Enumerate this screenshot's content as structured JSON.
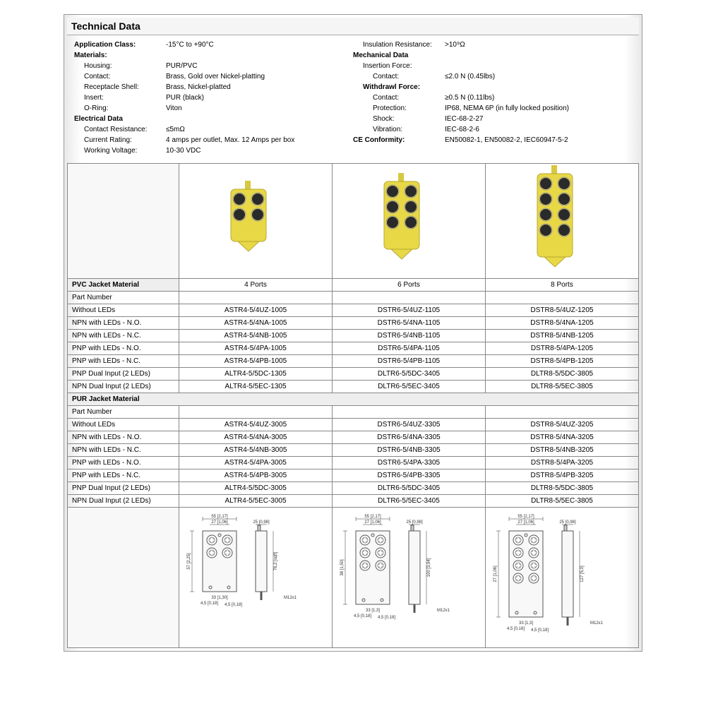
{
  "title": "Technical Data",
  "specs_left": [
    {
      "label": "Application Class:",
      "value": "-15°C to +90°C",
      "bold": true
    },
    {
      "label": "Materials:",
      "value": "",
      "bold": true
    },
    {
      "label": "Housing:",
      "value": "PUR/PVC",
      "indent": 1
    },
    {
      "label": "Contact:",
      "value": "Brass, Gold over Nickel-platting",
      "indent": 1
    },
    {
      "label": "Receptacle Shell:",
      "value": "Brass, Nickel-platted",
      "indent": 1
    },
    {
      "label": "Insert:",
      "value": "PUR (black)",
      "indent": 1
    },
    {
      "label": "O-Ring:",
      "value": "Viton",
      "indent": 1
    },
    {
      "label": "Electrical Data",
      "value": "",
      "bold": true
    },
    {
      "label": "Contact Resistance:",
      "value": "≤5mΩ",
      "indent": 1
    },
    {
      "label": "Current Rating:",
      "value": "4 amps per outlet, Max. 12 Amps per box",
      "indent": 1
    },
    {
      "label": "Working Voltage:",
      "value": "10-30 VDC",
      "indent": 1
    }
  ],
  "specs_right": [
    {
      "label": "Insulation Resistance:",
      "value": ">10⁹Ω",
      "indent": 1
    },
    {
      "label": "Mechanical Data",
      "value": "",
      "bold": true
    },
    {
      "label": "Insertion Force:",
      "value": "",
      "indent": 1
    },
    {
      "label": "Contact:",
      "value": "≤2.0 N (0.45lbs)",
      "indent": 2
    },
    {
      "label": "Withdrawl Force:",
      "value": "",
      "bold": true,
      "indent": 1
    },
    {
      "label": "Contact:",
      "value": "≥0.5 N (0.11lbs)",
      "indent": 2
    },
    {
      "label": "Protection:",
      "value": "IP68, NEMA 6P (in fully locked position)",
      "indent": 2
    },
    {
      "label": "Shock:",
      "value": "IEC-68-2-27",
      "indent": 2
    },
    {
      "label": "Vibration:",
      "value": "IEC-68-2-6",
      "indent": 2
    },
    {
      "label": "CE Conformity:",
      "value": "EN50082-1, EN50082-2, IEC60947-5-2",
      "bold": true
    }
  ],
  "columns": [
    "4 Ports",
    "6 Ports",
    "8 Ports"
  ],
  "section1_header": "PVC Jacket Material",
  "section1_sub": "Part Number",
  "section1_rows": [
    {
      "label": "Without LEDs",
      "vals": [
        "ASTR4-5/4UZ-1005",
        "DSTR6-5/4UZ-1105",
        "DSTR8-5/4UZ-1205"
      ]
    },
    {
      "label": "NPN with LEDs - N.O.",
      "vals": [
        "ASTR4-5/4NA-1005",
        "DSTR6-5/4NA-1105",
        "DSTR8-5/4NA-1205"
      ]
    },
    {
      "label": "NPN with LEDs - N.C.",
      "vals": [
        "ASTR4-5/4NB-1005",
        "DSTR6-5/4NB-1105",
        "DSTR8-5/4NB-1205"
      ]
    },
    {
      "label": "PNP with LEDs - N.O.",
      "vals": [
        "ASTR4-5/4PA-1005",
        "DSTR6-5/4PA-1105",
        "DSTR8-5/4PA-1205"
      ]
    },
    {
      "label": "PNP with LEDs - N.C.",
      "vals": [
        "ASTR4-5/4PB-1005",
        "DSTR6-5/4PB-1105",
        "DSTR8-5/4PB-1205"
      ]
    },
    {
      "label": "PNP Dual Input (2 LEDs)",
      "vals": [
        "ALTR4-5/5DC-1305",
        "DLTR6-5/5DC-3405",
        "DLTR8-5/5DC-3805"
      ]
    },
    {
      "label": "NPN Dual Input (2 LEDs)",
      "vals": [
        "ALTR4-5/5EC-1305",
        "DLTR6-5/5EC-3405",
        "DLTR8-5/5EC-3805"
      ]
    }
  ],
  "section2_header": "PUR Jacket Material",
  "section2_sub": "Part Number",
  "section2_rows": [
    {
      "label": "Without LEDs",
      "vals": [
        "ASTR4-5/4UZ-3005",
        "DSTR6-5/4UZ-3305",
        "DSTR8-5/4UZ-3205"
      ]
    },
    {
      "label": "NPN with LEDs - N.O.",
      "vals": [
        "ASTR4-5/4NA-3005",
        "DSTR6-5/4NA-3305",
        "DSTR8-5/4NA-3205"
      ]
    },
    {
      "label": "NPN with LEDs - N.C.",
      "vals": [
        "ASTR4-5/4NB-3005",
        "DSTR6-5/4NB-3305",
        "DSTR8-5/4NB-3205"
      ]
    },
    {
      "label": "PNP with LEDs - N.O.",
      "vals": [
        "ASTR4-5/4PA-3005",
        "DSTR6-5/4PA-3305",
        "DSTR8-5/4PA-3205"
      ]
    },
    {
      "label": "PNP with LEDs - N.C.",
      "vals": [
        "ASTR4-5/4PB-3005",
        "DSTR6-5/4PB-3305",
        "DSTR8-5/4PB-3205"
      ]
    },
    {
      "label": "PNP Dual Input (2 LEDs)",
      "vals": [
        "ALTR4-5/5DC-3005",
        "DLTR6-5/5DC-3405",
        "DLTR8-5/5DC-3805"
      ]
    },
    {
      "label": "NPN Dual Input (2 LEDs)",
      "vals": [
        "ALTR4-5/5EC-3005",
        "DLTR6-5/5EC-3405",
        "DLTR8-5/5EC-3805"
      ]
    }
  ],
  "connectors": [
    {
      "ports": 4,
      "rows": 2,
      "cols": 2,
      "body_color": "#e8d846",
      "hole_color": "#2a2a2a"
    },
    {
      "ports": 6,
      "rows": 3,
      "cols": 2,
      "body_color": "#e8d846",
      "hole_color": "#2a2a2a"
    },
    {
      "ports": 8,
      "rows": 4,
      "cols": 2,
      "body_color": "#e8d846",
      "hole_color": "#2a2a2a"
    }
  ],
  "diagrams": [
    {
      "ports": 4,
      "rows": 2,
      "cols": 2,
      "dims": {
        "width": "55 [2,17]",
        "inner_w": "27 [1,06]",
        "height": "76,2 [sqft]",
        "depth": "25 [0,98]",
        "mount_w": "33 [1,30]",
        "hole": "4,5 [0,18]",
        "slot": "4,5 [0,18]",
        "inner_h": "57 [2,25]",
        "thread": "M12x1"
      }
    },
    {
      "ports": 6,
      "rows": 3,
      "cols": 2,
      "dims": {
        "width": "55 [2,17]",
        "inner_w": "27 [1,06]",
        "height": "100 [3,94]",
        "depth": "25 [0,98]",
        "mount_w": "33 [1,3]",
        "hole": "4,5 [0,18]",
        "slot": "4,5 [0,18]",
        "inner_h": "38 [1,50]",
        "thread": "M12x1"
      }
    },
    {
      "ports": 8,
      "rows": 4,
      "cols": 2,
      "dims": {
        "width": "55 [2,17]",
        "inner_w": "27 [1,06]",
        "height": "127 [5,0]",
        "depth": "25 [0,98]",
        "mount_w": "33 [1,3]",
        "hole": "4,5 [0,18]",
        "slot": "4,5 [0,18]",
        "inner_h": "27 [1,06]",
        "thread": "M12x1"
      }
    }
  ],
  "colors": {
    "border": "#888888",
    "header_bg": "#eeeeee",
    "text": "#000000"
  }
}
